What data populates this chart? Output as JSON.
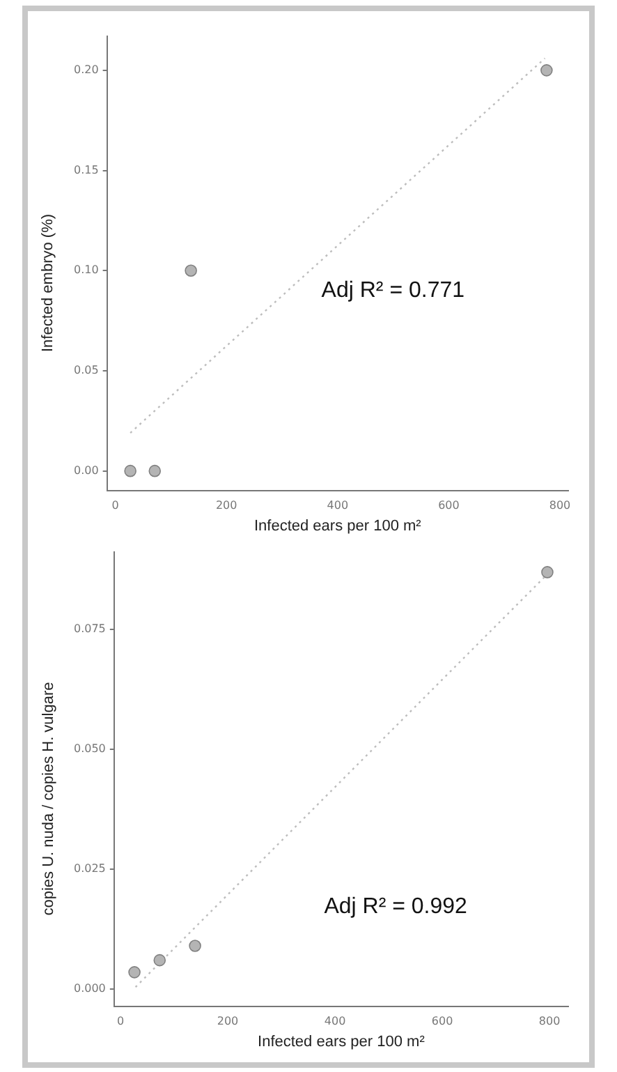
{
  "chart_data": [
    {
      "type": "scatter",
      "xlabel": "Infected ears per 100 m²",
      "ylabel": "Infected embryo (%)",
      "annotations": [
        "Adj R² = 0.771"
      ],
      "xlim": [
        -15,
        815
      ],
      "ylim": [
        -0.01,
        0.217
      ],
      "xticks": [
        0,
        200,
        400,
        600,
        800
      ],
      "yticks": [
        {
          "value": 0,
          "label": "0.00"
        },
        {
          "value": 0.05,
          "label": "0.05"
        },
        {
          "value": 0.1,
          "label": "0.10"
        },
        {
          "value": 0.15,
          "label": "0.15"
        },
        {
          "value": 0.2,
          "label": "0.20"
        }
      ],
      "grid": false,
      "legend": false,
      "series": [
        {
          "type": "scatter",
          "marker": "circle",
          "color": "#b4b4b4",
          "x": [
            27,
            71,
            136,
            776
          ],
          "values": [
            0,
            0,
            0.1,
            0.2
          ]
        },
        {
          "type": "line",
          "color": "#bdbdbd",
          "line_style": "dotted",
          "x": [
            27,
            773
          ],
          "values": [
            0.019,
            0.206
          ]
        }
      ]
    },
    {
      "type": "scatter",
      "xlabel": "Infected ears per 100 m²",
      "ylabel": "copies U. nuda / copies H. vulgare",
      "annotations": [
        "Adj R² = 0.992"
      ],
      "xlim": [
        -12,
        835
      ],
      "ylim": [
        -0.0037,
        0.0911
      ],
      "xticks": [
        0,
        200,
        400,
        600,
        800
      ],
      "yticks": [
        {
          "value": 0,
          "label": "0.000"
        },
        {
          "value": 0.025,
          "label": "0.025"
        },
        {
          "value": 0.05,
          "label": "0.050"
        },
        {
          "value": 0.075,
          "label": "0.075"
        }
      ],
      "grid": false,
      "legend": false,
      "series": [
        {
          "type": "scatter",
          "marker": "circle",
          "color": "#b4b4b4",
          "x": [
            26,
            73,
            139,
            796
          ],
          "values": [
            0.0035,
            0.006,
            0.009,
            0.0869
          ]
        },
        {
          "type": "line",
          "color": "#bdbdbd",
          "line_style": "dotted",
          "x": [
            28,
            790
          ],
          "values": [
            0.0004,
            0.0858
          ]
        }
      ]
    }
  ]
}
